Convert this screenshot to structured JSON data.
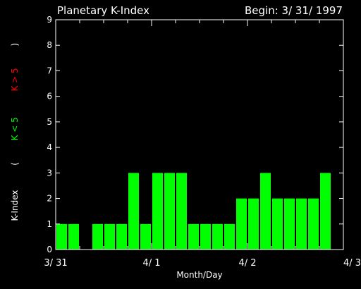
{
  "chart_data": {
    "type": "bar",
    "title": "Planetary K-Index",
    "begin_label": "Begin: 3/ 31/ 1997",
    "xlabel": "Month/Day",
    "ylabel": {
      "prefix": "K-Index",
      "open": "(",
      "green_part": "K < 5",
      "red_part": "K > 5",
      "close": ")"
    },
    "ylim": [
      0,
      9
    ],
    "yticks": [
      "0",
      "1",
      "2",
      "3",
      "4",
      "5",
      "6",
      "7",
      "8",
      "9"
    ],
    "xticks": [
      "3/ 31",
      "4/ 1",
      "4/ 2",
      "4/ 3"
    ],
    "bars_per_day": 8,
    "values": [
      1,
      1,
      0,
      1,
      1,
      1,
      3,
      1,
      3,
      3,
      3,
      1,
      1,
      1,
      1,
      2,
      2,
      3,
      2,
      2,
      2,
      2,
      3
    ],
    "colors": {
      "background": "#000000",
      "axis": "#ffffff",
      "bar_low": "#00ff00",
      "bar_high": "#ff0000",
      "label_green": "#00ff00",
      "label_red": "#ff0000"
    }
  }
}
